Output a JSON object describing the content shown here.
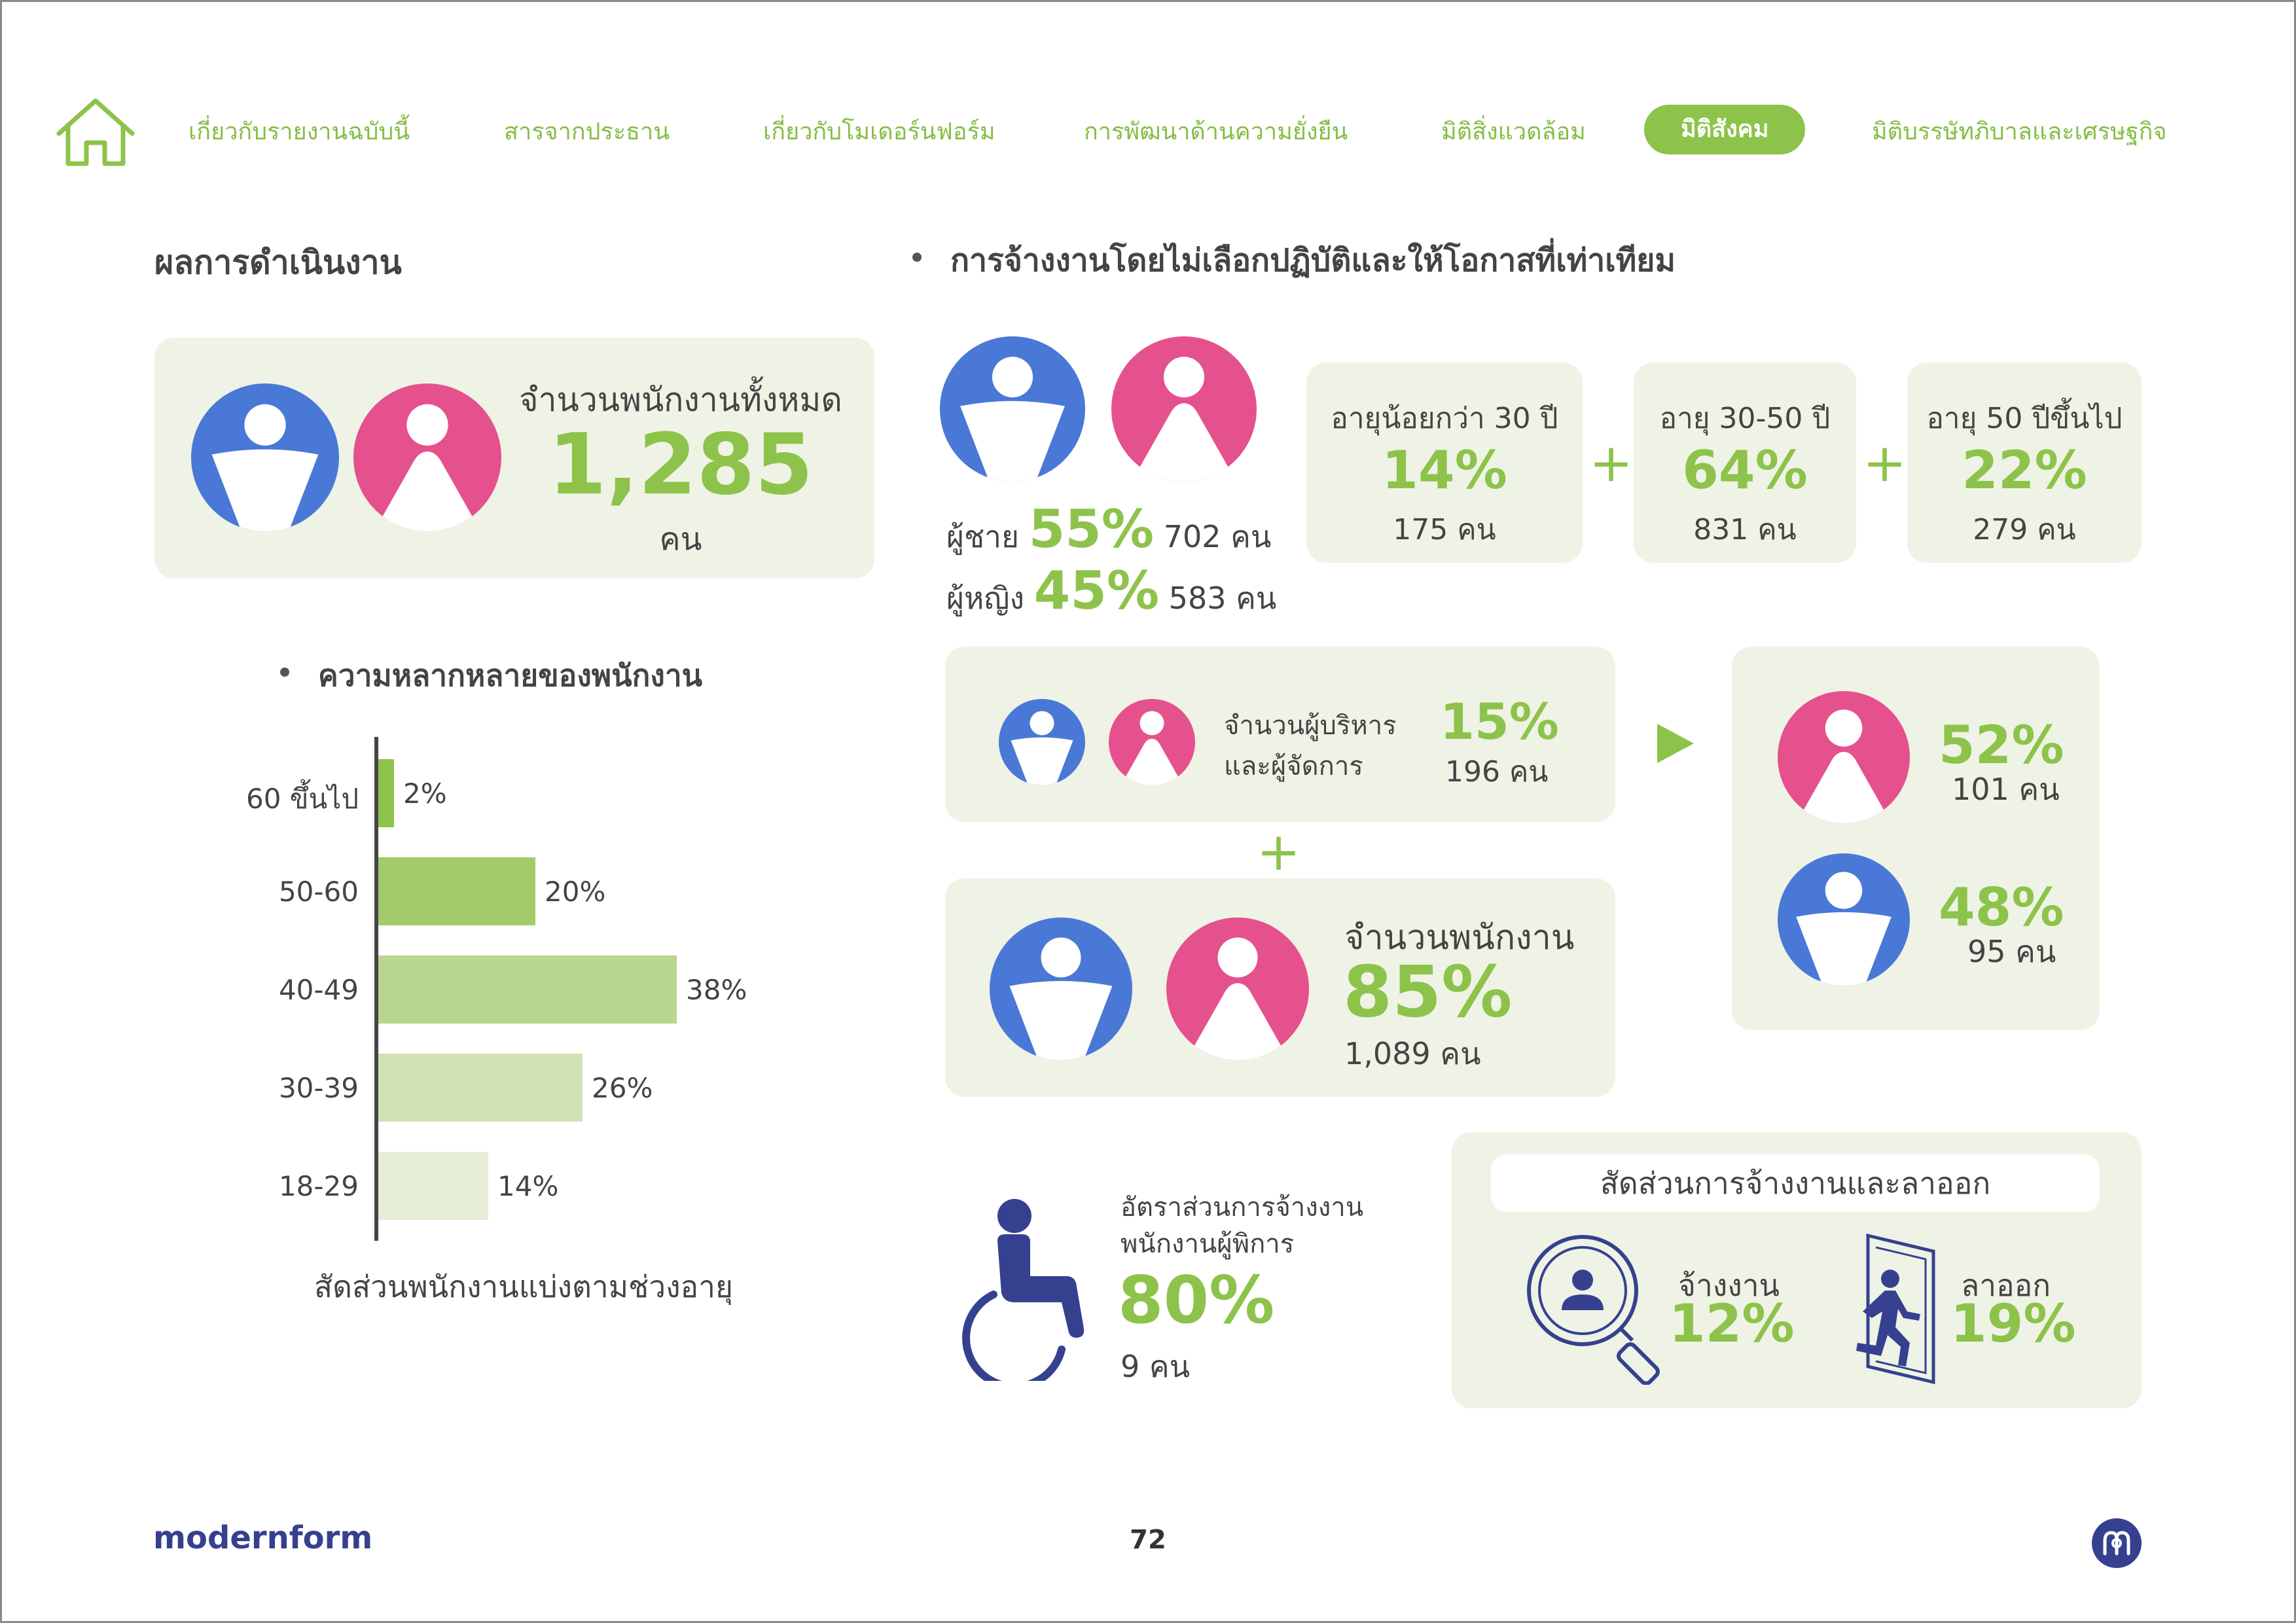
{
  "nav": {
    "items": [
      "เกี่ยวกับรายงานฉบับนี้",
      "สารจากประธาน",
      "เกี่ยวกับโมเดอร์นฟอร์ม",
      "การพัฒนาด้านความยั่งยืน",
      "มิติสิ่งแวดล้อม",
      "มิติสังคม",
      "มิติบรรษัทภิบาลและเศรษฐกิจ"
    ],
    "active": "มิติสังคม",
    "home_icon": "home-icon"
  },
  "left": {
    "section_title": "ผลการดำเนินงาน",
    "total_label": "จำนวนพนักงานทั้งหมด",
    "total_value": "1,285",
    "total_unit": "คน",
    "diversity_title": "ความหลากหลายของพนักงาน",
    "chart_caption": "สัดส่วนพนักงานแบ่งตามช่วงอายุ"
  },
  "chart_data": {
    "type": "bar",
    "orientation": "horizontal",
    "categories": [
      "60 ขึ้นไป",
      "50-60",
      "40-49",
      "30-39",
      "18-29"
    ],
    "values": [
      2,
      20,
      38,
      26,
      14
    ],
    "value_labels": [
      "2%",
      "20%",
      "38%",
      "26%",
      "14%"
    ],
    "colors": [
      "#8dc34a",
      "#a3cb6a",
      "#b8d68e",
      "#d1e2b3",
      "#e6eed8"
    ],
    "xlabel": "",
    "ylabel": "",
    "title": "สัดส่วนพนักงานแบ่งตามช่วงอายุ"
  },
  "right": {
    "section_title": "การจ้างงานโดยไม่เลือกปฏิบัติและให้โอกาสที่เท่าเทียม",
    "male_label": "ผู้ชาย",
    "male_pct": "55%",
    "male_count": "702 คน",
    "female_label": "ผู้หญิง",
    "female_pct": "45%",
    "female_count": "583 คน",
    "age_groups": [
      {
        "label": "อายุน้อยกว่า 30 ปี",
        "pct": "14%",
        "count": "175 คน"
      },
      {
        "label": "อายุ 30-50 ปี",
        "pct": "64%",
        "count": "831 คน"
      },
      {
        "label": "อายุ 50 ปีขึ้นไป",
        "pct": "22%",
        "count": "279 คน"
      }
    ],
    "plus_sign": "+",
    "managers_label_1": "จำนวนผู้บริหาร",
    "managers_label_2": "และผู้จัดการ",
    "managers_pct": "15%",
    "managers_count": "196 คน",
    "staff_label": "จำนวนพนักงาน",
    "staff_pct": "85%",
    "staff_count": "1,089 คน",
    "mgr_female_pct": "52%",
    "mgr_female_count": "101 คน",
    "mgr_male_pct": "48%",
    "mgr_male_count": "95 คน",
    "disabled_label_1": "อัตราส่วนการจ้างงาน",
    "disabled_label_2": "พนักงานผู้พิการ",
    "disabled_pct": "80%",
    "disabled_count": "9 คน",
    "turnover_title": "สัดส่วนการจ้างงานและลาออก",
    "hire_label": "จ้างงาน",
    "hire_pct": "12%",
    "resign_label": "ลาออก",
    "resign_pct": "19%"
  },
  "footer": {
    "brand": "modernform",
    "page_number": "72"
  },
  "colors": {
    "accent_green": "#8dc34a",
    "male_blue": "#4a78d6",
    "female_pink": "#e5518c",
    "navy": "#35418f",
    "card_bg": "#eef3e6"
  }
}
